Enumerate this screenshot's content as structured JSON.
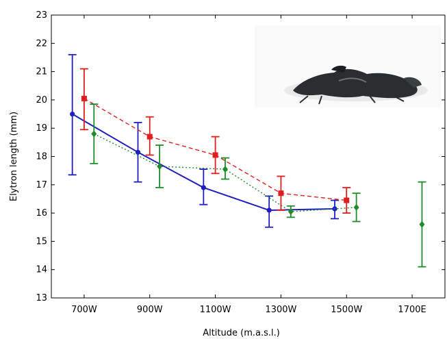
{
  "chart_data": {
    "type": "line",
    "xlabel": "Altitude (m.a.s.l.)",
    "ylabel": "Elytron length (mm)",
    "categories": [
      "700W",
      "900W",
      "1100W",
      "1300W",
      "1500W",
      "1700E"
    ],
    "ylim": [
      13,
      23
    ],
    "yticks": [
      13,
      14,
      15,
      16,
      17,
      18,
      19,
      20,
      21,
      22,
      23
    ],
    "grid": false,
    "legend": "none",
    "series": [
      {
        "color": "#1f1fbf",
        "line_style": "solid",
        "marker": "circle",
        "offset": -0.18,
        "values": [
          19.5,
          18.15,
          16.9,
          16.1,
          16.15,
          null
        ],
        "err_low": [
          17.35,
          17.1,
          16.3,
          15.5,
          15.8,
          null
        ],
        "err_high": [
          21.6,
          19.2,
          17.55,
          16.6,
          16.45,
          null
        ]
      },
      {
        "color": "#e01e1e",
        "line_style": "dashed",
        "marker": "square",
        "offset": 0.0,
        "values": [
          20.05,
          18.7,
          18.05,
          16.7,
          16.45,
          null
        ],
        "err_low": [
          18.95,
          18.05,
          17.4,
          16.1,
          16.0,
          null
        ],
        "err_high": [
          21.1,
          19.4,
          18.7,
          17.3,
          16.9,
          null
        ]
      },
      {
        "color": "#1e8c2a",
        "line_style": "dotted",
        "marker": "diamond",
        "offset": 0.15,
        "values": [
          18.8,
          17.65,
          17.55,
          16.05,
          16.2,
          15.6
        ],
        "err_low": [
          17.75,
          16.9,
          17.2,
          15.85,
          15.7,
          14.1
        ],
        "err_high": [
          19.85,
          18.4,
          17.95,
          16.25,
          16.7,
          17.1
        ],
        "line_breaks_after": [
          4
        ]
      }
    ],
    "inset_image": "beetle-photo"
  }
}
